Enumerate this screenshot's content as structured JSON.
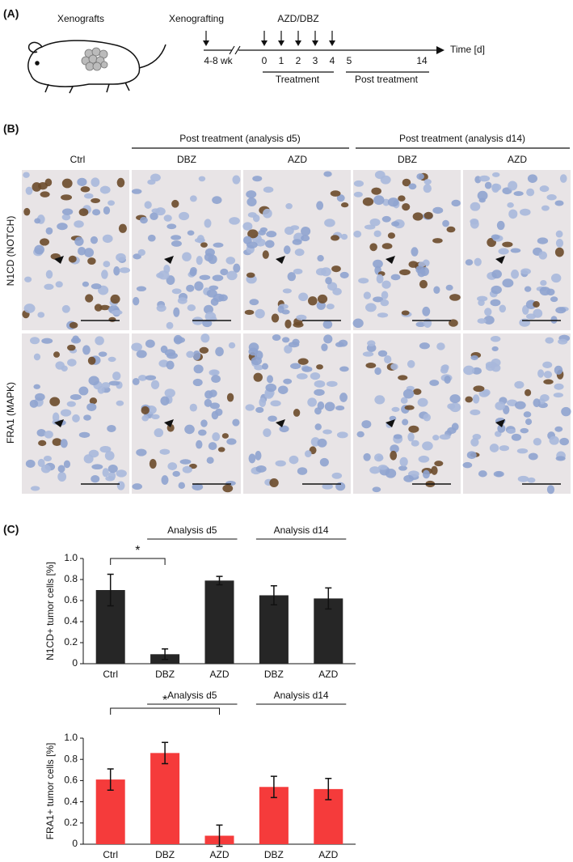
{
  "panel_a": {
    "label": "(A)",
    "mouse_label": "Xenografts",
    "xenografting": "Xenografting",
    "drug": "AZD/DBZ",
    "time_label": "Time [d]",
    "pre_label": "4-8 wk",
    "days": [
      "0",
      "1",
      "2",
      "3",
      "4",
      "5",
      "14"
    ],
    "treatment": "Treatment",
    "post_treatment": "Post treatment"
  },
  "panel_b": {
    "label": "(B)",
    "group_headers": [
      "Post treatment (analysis d5)",
      "Post treatment (analysis d14)"
    ],
    "columns": [
      "Ctrl",
      "DBZ",
      "AZD",
      "DBZ",
      "AZD"
    ],
    "rows": [
      "N1CD (NOTCH)",
      "FRA1 (MAPK)"
    ]
  },
  "panel_c": {
    "label": "(C)"
  },
  "chart_data": [
    {
      "type": "bar",
      "ylabel": "N1CD+ tumor cells [%]",
      "categories": [
        "Ctrl",
        "DBZ",
        "AZD",
        "DBZ",
        "AZD"
      ],
      "values": [
        0.7,
        0.09,
        0.79,
        0.65,
        0.62
      ],
      "errors": [
        0.15,
        0.05,
        0.04,
        0.09,
        0.1
      ],
      "color": "#262626",
      "ylim": [
        0,
        1
      ],
      "yticks": [
        0,
        0.2,
        0.4,
        0.6,
        0.8,
        {
          "value": 1,
          "label": "1.0"
        }
      ],
      "groups": [
        "Analysis d5",
        "Analysis d14"
      ],
      "significance": "*"
    },
    {
      "type": "bar",
      "ylabel": "FRA1+ tumor cells [%]",
      "categories": [
        "Ctrl",
        "DBZ",
        "AZD",
        "DBZ",
        "AZD"
      ],
      "values": [
        0.61,
        0.86,
        0.08,
        0.54,
        0.52
      ],
      "errors": [
        0.1,
        0.1,
        0.1,
        0.1,
        0.1
      ],
      "color": "#f53b3b",
      "ylim": [
        0,
        1
      ],
      "yticks": [
        0,
        0.2,
        0.4,
        0.6,
        0.8,
        {
          "value": 1,
          "label": "1.0"
        }
      ],
      "groups": [
        "Analysis d5",
        "Analysis d14"
      ],
      "significance": "*"
    }
  ]
}
